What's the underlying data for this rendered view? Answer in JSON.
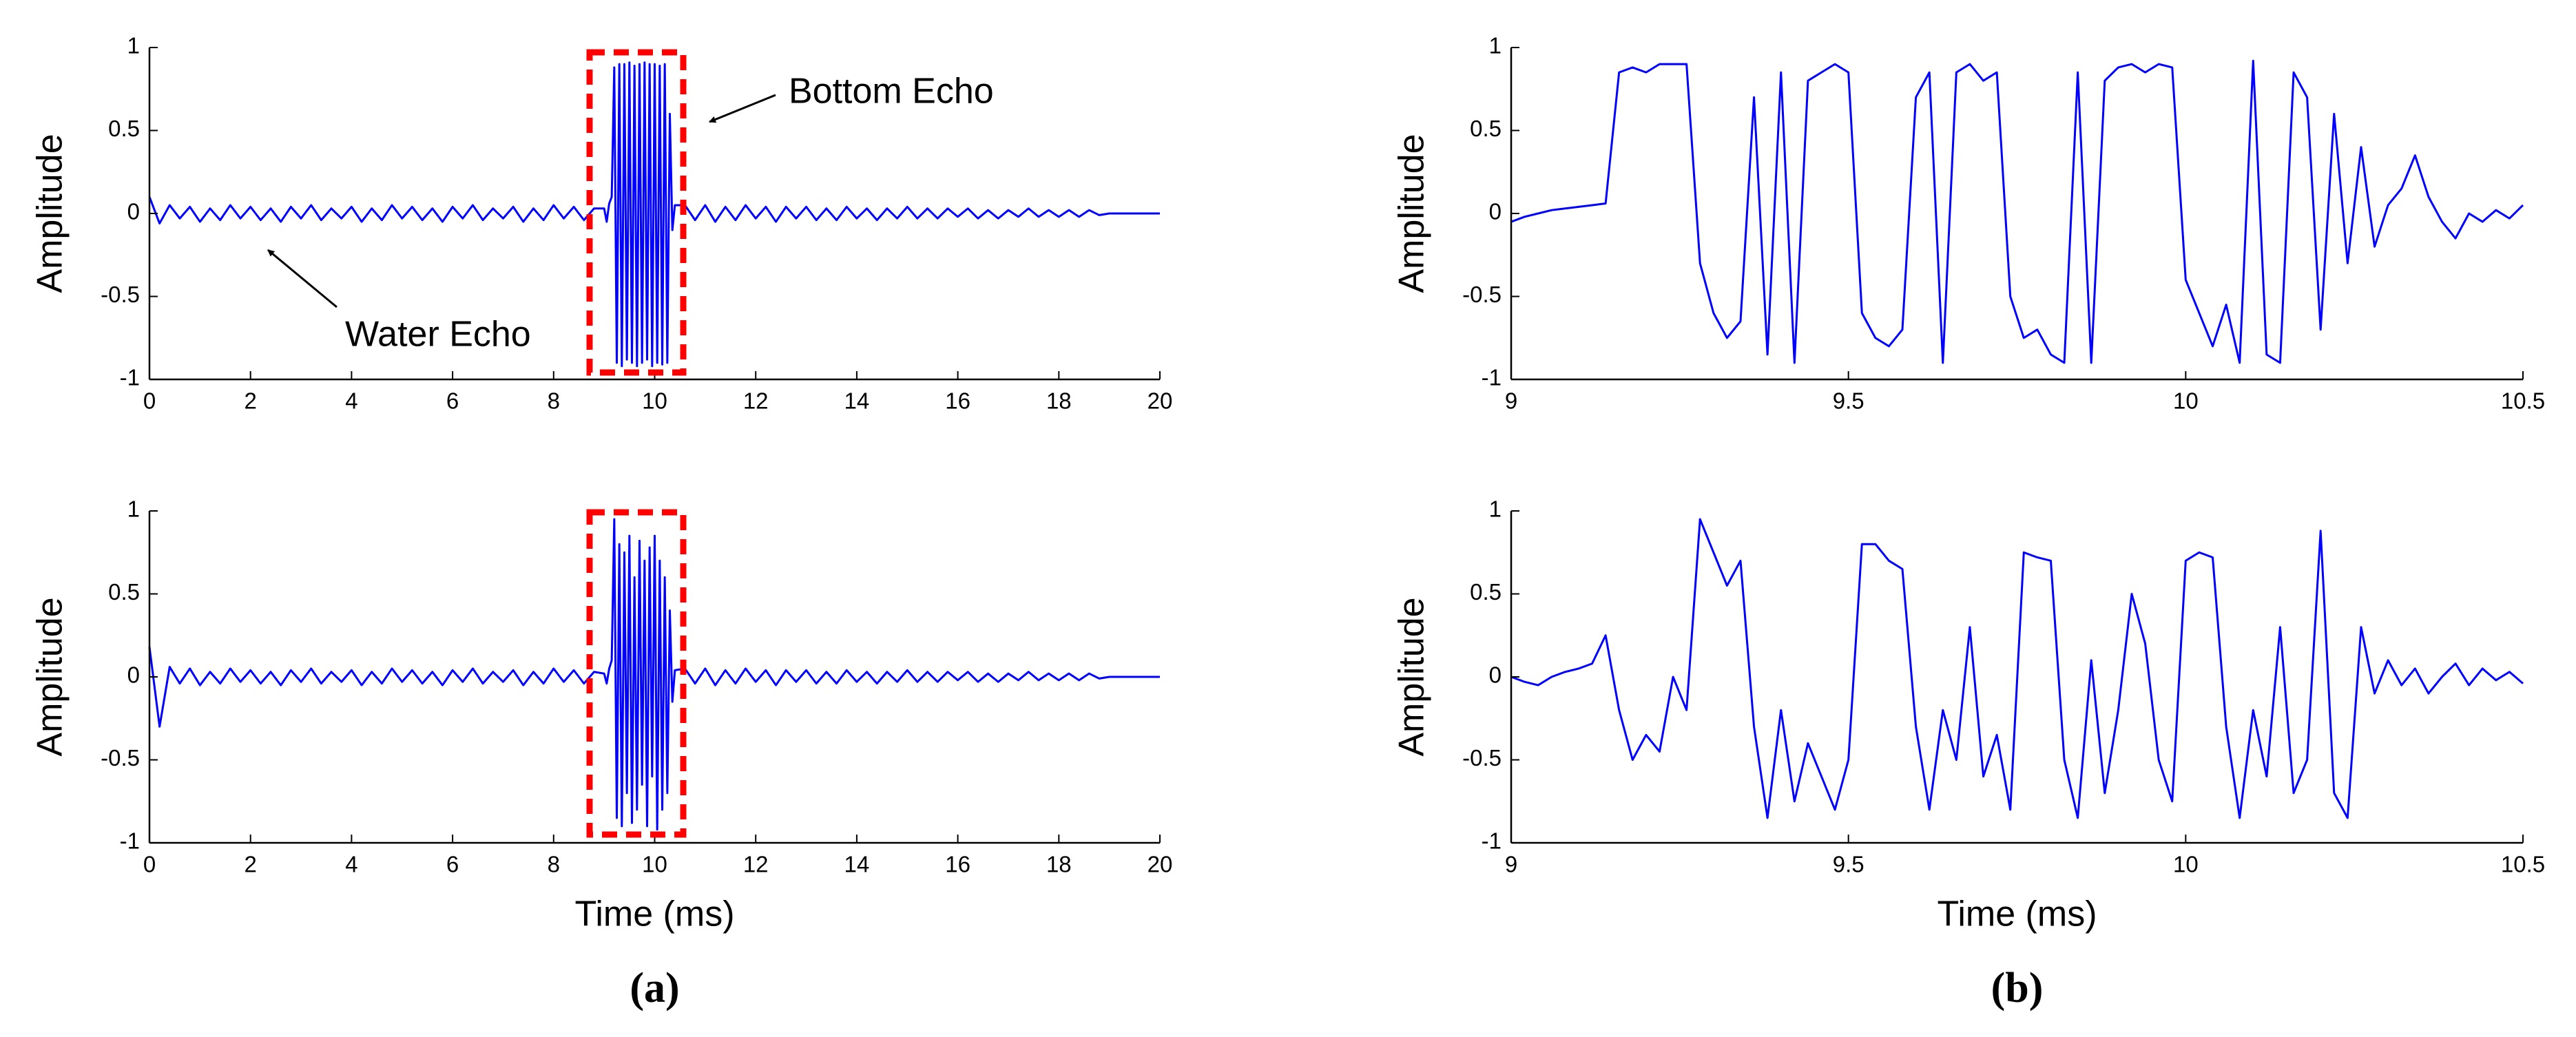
{
  "chart_data": [
    {
      "type": "line",
      "ylabel": "Amplitude",
      "x": [
        0,
        0.2,
        0.4,
        0.6,
        0.8,
        1,
        1.2,
        1.4,
        1.6,
        1.8,
        2,
        2.2,
        2.4,
        2.6,
        2.8,
        3,
        3.2,
        3.4,
        3.6,
        3.8,
        4,
        4.2,
        4.4,
        4.6,
        4.8,
        5,
        5.2,
        5.4,
        5.6,
        5.8,
        6,
        6.2,
        6.4,
        6.6,
        6.8,
        7,
        7.2,
        7.4,
        7.6,
        7.8,
        8,
        8.2,
        8.4,
        8.6,
        8.8,
        9,
        9.05,
        9.1,
        9.15,
        9.2,
        9.25,
        9.3,
        9.35,
        9.4,
        9.45,
        9.5,
        9.55,
        9.6,
        9.65,
        9.7,
        9.75,
        9.8,
        9.85,
        9.9,
        9.95,
        10,
        10.05,
        10.1,
        10.15,
        10.2,
        10.25,
        10.3,
        10.35,
        10.4,
        10.6,
        10.8,
        11,
        11.2,
        11.4,
        11.6,
        11.8,
        12,
        12.2,
        12.4,
        12.6,
        12.8,
        13,
        13.2,
        13.4,
        13.6,
        13.8,
        14,
        14.2,
        14.4,
        14.6,
        14.8,
        15,
        15.2,
        15.4,
        15.6,
        15.8,
        16,
        16.2,
        16.4,
        16.6,
        16.8,
        17,
        17.2,
        17.4,
        17.6,
        17.8,
        18,
        18.2,
        18.4,
        18.6,
        18.8,
        19,
        20
      ],
      "series": [
        {
          "color": "#0000ff",
          "values": [
            0.1,
            -0.06,
            0.05,
            -0.03,
            0.04,
            -0.05,
            0.03,
            -0.04,
            0.05,
            -0.03,
            0.04,
            -0.04,
            0.03,
            -0.05,
            0.04,
            -0.03,
            0.05,
            -0.04,
            0.03,
            -0.03,
            0.04,
            -0.05,
            0.03,
            -0.04,
            0.05,
            -0.03,
            0.04,
            -0.04,
            0.03,
            -0.05,
            0.04,
            -0.03,
            0.05,
            -0.04,
            0.03,
            -0.03,
            0.04,
            -0.05,
            0.03,
            -0.04,
            0.05,
            -0.03,
            0.04,
            -0.04,
            0.03,
            0.03,
            -0.05,
            0.06,
            0.1,
            0.88,
            -0.9,
            0.9,
            -0.92,
            0.9,
            -0.88,
            0.91,
            -0.9,
            0.89,
            -0.92,
            0.9,
            -0.9,
            0.91,
            -0.88,
            0.9,
            -0.92,
            0.9,
            -0.9,
            0.89,
            -0.91,
            0.9,
            -0.9,
            0.6,
            -0.1,
            0.05,
            0.05,
            -0.04,
            0.05,
            -0.05,
            0.04,
            -0.04,
            0.05,
            -0.03,
            0.04,
            -0.05,
            0.04,
            -0.03,
            0.04,
            -0.04,
            0.03,
            -0.04,
            0.04,
            -0.03,
            0.03,
            -0.04,
            0.03,
            -0.03,
            0.04,
            -0.03,
            0.03,
            -0.03,
            0.03,
            -0.02,
            0.03,
            -0.03,
            0.02,
            -0.03,
            0.02,
            -0.02,
            0.03,
            -0.02,
            0.02,
            -0.02,
            0.02,
            -0.02,
            0.02,
            -0.01,
            0,
            0
          ]
        }
      ],
      "xlim": [
        0,
        20
      ],
      "xticks": [
        0,
        2,
        4,
        6,
        8,
        10,
        12,
        14,
        16,
        18,
        20
      ],
      "ylim": [
        -1,
        1
      ],
      "yticks": [
        -1,
        -0.5,
        0,
        0.5,
        1
      ],
      "annotations": [
        {
          "text": "Bottom Echo"
        },
        {
          "text": "Water Echo"
        }
      ]
    },
    {
      "type": "line",
      "ylabel": "Amplitude",
      "xlabel": "Time (ms)",
      "panel_label": "(a)",
      "x": [
        0,
        0.2,
        0.4,
        0.6,
        0.8,
        1,
        1.2,
        1.4,
        1.6,
        1.8,
        2,
        2.2,
        2.4,
        2.6,
        2.8,
        3,
        3.2,
        3.4,
        3.6,
        3.8,
        4,
        4.2,
        4.4,
        4.6,
        4.8,
        5,
        5.2,
        5.4,
        5.6,
        5.8,
        6,
        6.2,
        6.4,
        6.6,
        6.8,
        7,
        7.2,
        7.4,
        7.6,
        7.8,
        8,
        8.2,
        8.4,
        8.6,
        8.8,
        9,
        9.05,
        9.1,
        9.15,
        9.2,
        9.25,
        9.3,
        9.35,
        9.4,
        9.45,
        9.5,
        9.55,
        9.6,
        9.65,
        9.7,
        9.75,
        9.8,
        9.85,
        9.9,
        9.95,
        10,
        10.05,
        10.1,
        10.15,
        10.2,
        10.25,
        10.3,
        10.35,
        10.4,
        10.6,
        10.8,
        11,
        11.2,
        11.4,
        11.6,
        11.8,
        12,
        12.2,
        12.4,
        12.6,
        12.8,
        13,
        13.2,
        13.4,
        13.6,
        13.8,
        14,
        14.2,
        14.4,
        14.6,
        14.8,
        15,
        15.2,
        15.4,
        15.6,
        15.8,
        16,
        16.2,
        16.4,
        16.6,
        16.8,
        17,
        17.2,
        17.4,
        17.6,
        17.8,
        18,
        18.2,
        18.4,
        18.6,
        18.8,
        19,
        20
      ],
      "series": [
        {
          "color": "#0000ff",
          "values": [
            0.18,
            -0.3,
            0.06,
            -0.04,
            0.05,
            -0.05,
            0.03,
            -0.04,
            0.05,
            -0.03,
            0.04,
            -0.04,
            0.03,
            -0.05,
            0.04,
            -0.03,
            0.05,
            -0.04,
            0.03,
            -0.03,
            0.04,
            -0.05,
            0.03,
            -0.04,
            0.05,
            -0.03,
            0.04,
            -0.04,
            0.03,
            -0.05,
            0.04,
            -0.03,
            0.05,
            -0.04,
            0.03,
            -0.03,
            0.04,
            -0.05,
            0.03,
            -0.04,
            0.05,
            -0.03,
            0.04,
            -0.04,
            0.03,
            0.02,
            -0.04,
            0.05,
            0.1,
            0.95,
            -0.85,
            0.8,
            -0.9,
            0.75,
            -0.7,
            0.85,
            -0.88,
            0.6,
            -0.8,
            0.82,
            -0.65,
            0.7,
            -0.9,
            0.78,
            -0.6,
            0.85,
            -0.92,
            0.7,
            -0.8,
            0.6,
            -0.7,
            0.4,
            -0.15,
            0.04,
            0.05,
            -0.04,
            0.05,
            -0.05,
            0.04,
            -0.04,
            0.05,
            -0.03,
            0.04,
            -0.05,
            0.04,
            -0.03,
            0.04,
            -0.04,
            0.03,
            -0.04,
            0.04,
            -0.03,
            0.03,
            -0.04,
            0.03,
            -0.03,
            0.04,
            -0.03,
            0.03,
            -0.03,
            0.03,
            -0.02,
            0.03,
            -0.03,
            0.02,
            -0.03,
            0.02,
            -0.02,
            0.03,
            -0.02,
            0.02,
            -0.02,
            0.02,
            -0.02,
            0.02,
            -0.01,
            0,
            0
          ]
        }
      ],
      "xlim": [
        0,
        20
      ],
      "xticks": [
        0,
        2,
        4,
        6,
        8,
        10,
        12,
        14,
        16,
        18,
        20
      ],
      "ylim": [
        -1,
        1
      ],
      "yticks": [
        -1,
        -0.5,
        0,
        0.5,
        1
      ]
    },
    {
      "type": "line",
      "ylabel": "Amplitude",
      "x": [
        9,
        9.02,
        9.04,
        9.06,
        9.08,
        9.1,
        9.12,
        9.14,
        9.16,
        9.18,
        9.2,
        9.22,
        9.24,
        9.26,
        9.28,
        9.3,
        9.32,
        9.34,
        9.36,
        9.38,
        9.4,
        9.42,
        9.44,
        9.46,
        9.48,
        9.5,
        9.52,
        9.54,
        9.56,
        9.58,
        9.6,
        9.62,
        9.64,
        9.66,
        9.68,
        9.7,
        9.72,
        9.74,
        9.76,
        9.78,
        9.8,
        9.82,
        9.84,
        9.86,
        9.88,
        9.9,
        9.92,
        9.94,
        9.96,
        9.98,
        10,
        10.02,
        10.04,
        10.06,
        10.08,
        10.1,
        10.12,
        10.14,
        10.16,
        10.18,
        10.2,
        10.22,
        10.24,
        10.26,
        10.28,
        10.3,
        10.32,
        10.34,
        10.36,
        10.38,
        10.4,
        10.42,
        10.44,
        10.46,
        10.48,
        10.5
      ],
      "series": [
        {
          "color": "#0000ff",
          "values": [
            -0.05,
            -0.02,
            0,
            0.02,
            0.03,
            0.04,
            0.05,
            0.06,
            0.85,
            0.88,
            0.85,
            0.9,
            0.9,
            0.9,
            -0.3,
            -0.6,
            -0.75,
            -0.65,
            0.7,
            -0.85,
            0.85,
            -0.9,
            0.8,
            0.85,
            0.9,
            0.85,
            -0.6,
            -0.75,
            -0.8,
            -0.7,
            0.7,
            0.85,
            -0.9,
            0.85,
            0.9,
            0.8,
            0.85,
            -0.5,
            -0.75,
            -0.7,
            -0.85,
            -0.9,
            0.85,
            -0.9,
            0.8,
            0.88,
            0.9,
            0.85,
            0.9,
            0.88,
            -0.4,
            -0.6,
            -0.8,
            -0.55,
            -0.9,
            0.92,
            -0.85,
            -0.9,
            0.85,
            0.7,
            -0.7,
            0.6,
            -0.3,
            0.4,
            -0.2,
            0.05,
            0.15,
            0.35,
            0.1,
            -0.05,
            -0.15,
            0,
            -0.05,
            0.02,
            -0.03,
            0.05
          ]
        }
      ],
      "xlim": [
        9,
        10.5
      ],
      "xticks": [
        9,
        9.5,
        10,
        10.5
      ],
      "ylim": [
        -1,
        1
      ],
      "yticks": [
        -1,
        -0.5,
        0,
        0.5,
        1
      ]
    },
    {
      "type": "line",
      "ylabel": "Amplitude",
      "xlabel": "Time (ms)",
      "panel_label": "(b)",
      "x": [
        9,
        9.02,
        9.04,
        9.06,
        9.08,
        9.1,
        9.12,
        9.14,
        9.16,
        9.18,
        9.2,
        9.22,
        9.24,
        9.26,
        9.28,
        9.3,
        9.32,
        9.34,
        9.36,
        9.38,
        9.4,
        9.42,
        9.44,
        9.46,
        9.48,
        9.5,
        9.52,
        9.54,
        9.56,
        9.58,
        9.6,
        9.62,
        9.64,
        9.66,
        9.68,
        9.7,
        9.72,
        9.74,
        9.76,
        9.78,
        9.8,
        9.82,
        9.84,
        9.86,
        9.88,
        9.9,
        9.92,
        9.94,
        9.96,
        9.98,
        10,
        10.02,
        10.04,
        10.06,
        10.08,
        10.1,
        10.12,
        10.14,
        10.16,
        10.18,
        10.2,
        10.22,
        10.24,
        10.26,
        10.28,
        10.3,
        10.32,
        10.34,
        10.36,
        10.38,
        10.4,
        10.42,
        10.44,
        10.46,
        10.48,
        10.5
      ],
      "series": [
        {
          "color": "#0000ff",
          "values": [
            0,
            -0.03,
            -0.05,
            0,
            0.03,
            0.05,
            0.08,
            0.25,
            -0.2,
            -0.5,
            -0.35,
            -0.45,
            0,
            -0.2,
            0.95,
            0.75,
            0.55,
            0.7,
            -0.3,
            -0.85,
            -0.2,
            -0.75,
            -0.4,
            -0.6,
            -0.8,
            -0.5,
            0.8,
            0.8,
            0.7,
            0.65,
            -0.3,
            -0.8,
            -0.2,
            -0.5,
            0.3,
            -0.6,
            -0.35,
            -0.8,
            0.75,
            0.72,
            0.7,
            -0.5,
            -0.85,
            0.1,
            -0.7,
            -0.2,
            0.5,
            0.2,
            -0.5,
            -0.75,
            0.7,
            0.75,
            0.72,
            -0.3,
            -0.85,
            -0.2,
            -0.6,
            0.3,
            -0.7,
            -0.5,
            0.88,
            -0.7,
            -0.85,
            0.3,
            -0.1,
            0.1,
            -0.05,
            0.05,
            -0.1,
            0,
            0.08,
            -0.05,
            0.05,
            -0.02,
            0.03,
            -0.04
          ]
        }
      ],
      "xlim": [
        9,
        10.5
      ],
      "xticks": [
        9,
        9.5,
        10,
        10.5
      ],
      "ylim": [
        -1,
        1
      ],
      "yticks": [
        -1,
        -0.5,
        0,
        0.5,
        1
      ]
    }
  ]
}
